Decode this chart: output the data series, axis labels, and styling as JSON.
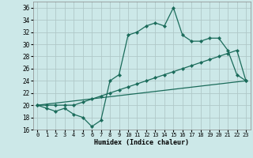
{
  "xlabel": "Humidex (Indice chaleur)",
  "bg_color": "#cce8e8",
  "grid_color": "#b0c8c8",
  "line_color": "#1a6b5a",
  "xlim": [
    -0.5,
    23.5
  ],
  "ylim": [
    16,
    37
  ],
  "yticks": [
    16,
    18,
    20,
    22,
    24,
    26,
    28,
    30,
    32,
    34,
    36
  ],
  "xticks": [
    0,
    1,
    2,
    3,
    4,
    5,
    6,
    7,
    8,
    9,
    10,
    11,
    12,
    13,
    14,
    15,
    16,
    17,
    18,
    19,
    20,
    21,
    22,
    23
  ],
  "line1_x": [
    0,
    1,
    2,
    3,
    4,
    5,
    6,
    7,
    8,
    9,
    10,
    11,
    12,
    13,
    14,
    15,
    16,
    17,
    18,
    19,
    20,
    21,
    22,
    23
  ],
  "line1_y": [
    20,
    19.5,
    19,
    19.5,
    18.5,
    18,
    16.5,
    17.5,
    24,
    25,
    31.5,
    32,
    33,
    33.5,
    33,
    36,
    31.5,
    30.5,
    30.5,
    31,
    31,
    29,
    25,
    24
  ],
  "line2_x": [
    0,
    1,
    2,
    3,
    4,
    5,
    6,
    7,
    8,
    9,
    10,
    11,
    12,
    13,
    14,
    15,
    16,
    17,
    18,
    19,
    20,
    21,
    22,
    23
  ],
  "line2_y": [
    20,
    20,
    20,
    20,
    20,
    20.5,
    21,
    21.5,
    22,
    22.5,
    23,
    23.5,
    24,
    24.5,
    25,
    25.5,
    26,
    26.5,
    27,
    27.5,
    28,
    28.5,
    29,
    24
  ],
  "line3_x": [
    0,
    23
  ],
  "line3_y": [
    20,
    24
  ]
}
